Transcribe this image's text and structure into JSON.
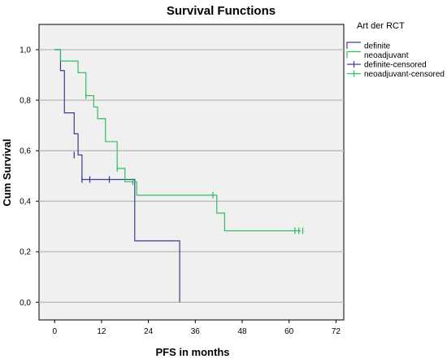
{
  "chart_data": {
    "type": "line",
    "subtype": "kaplan-meier-step",
    "title": "Survival Functions",
    "xlabel": "PFS in months",
    "ylabel": "Cum Survival",
    "xlim": [
      -4,
      74
    ],
    "ylim": [
      -0.07,
      1.1
    ],
    "x_ticks": [
      0,
      12,
      24,
      36,
      48,
      60,
      72
    ],
    "y_ticks": [
      0.0,
      0.2,
      0.4,
      0.6,
      0.8,
      1.0
    ],
    "y_tick_labels": [
      "0,0",
      "0,2",
      "0,4",
      "0,6",
      "0,8",
      "1,0"
    ],
    "grid": "horizontal",
    "legend_title": "Art der RCT",
    "legend_position": "right",
    "plot_background": "#f0f0f0",
    "series": [
      {
        "name": "definite",
        "color": "#3d3d8f",
        "steps": [
          [
            0,
            1.0
          ],
          [
            1.5,
            0.917
          ],
          [
            2.5,
            0.75
          ],
          [
            5,
            0.667
          ],
          [
            6,
            0.583
          ],
          [
            7,
            0.486
          ],
          [
            20.5,
            0.486
          ],
          [
            20.5,
            0.243
          ],
          [
            32,
            0.243
          ],
          [
            32,
            0.0
          ]
        ],
        "censored_name": "definite-censored",
        "censored": [
          [
            5,
            0.583
          ],
          [
            7,
            0.486
          ],
          [
            9,
            0.486
          ],
          [
            14,
            0.486
          ]
        ]
      },
      {
        "name": "neoadjuvant",
        "color": "#2fbf62",
        "steps": [
          [
            0,
            1.0
          ],
          [
            1.5,
            0.955
          ],
          [
            6,
            0.909
          ],
          [
            8,
            0.818
          ],
          [
            10,
            0.773
          ],
          [
            11,
            0.727
          ],
          [
            13,
            0.636
          ],
          [
            16,
            0.53
          ],
          [
            18,
            0.477
          ],
          [
            21,
            0.424
          ],
          [
            41,
            0.424
          ],
          [
            41.5,
            0.353
          ],
          [
            43.5,
            0.283
          ],
          [
            63,
            0.283
          ]
        ],
        "censored_name": "neoadjuvant-censored",
        "censored": [
          [
            8,
            0.818
          ],
          [
            16,
            0.53
          ],
          [
            20,
            0.477
          ],
          [
            40.5,
            0.424
          ],
          [
            61.5,
            0.283
          ],
          [
            62.5,
            0.283
          ],
          [
            63.5,
            0.283
          ]
        ]
      }
    ]
  }
}
